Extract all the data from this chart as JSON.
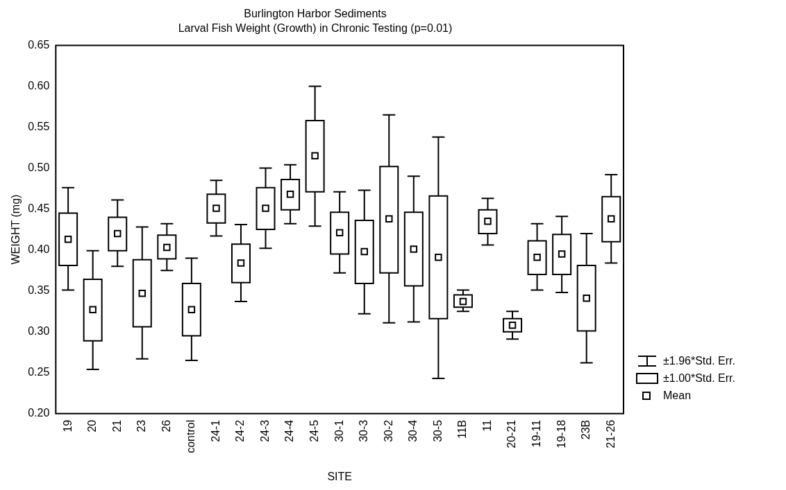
{
  "chart_data": {
    "type": "box",
    "title": "Burlington Harbor Sediments",
    "subtitle": "Larval Fish Weight (Growth) in Chronic Testing (p=0.01)",
    "xlabel": "SITE",
    "ylabel": "WEIGHT (mg)",
    "categories": [
      "19",
      "20",
      "21",
      "23",
      "26",
      "control",
      "24-1",
      "24-2",
      "24-3",
      "24-4",
      "24-5",
      "30-1",
      "30-3",
      "30-2",
      "30-4",
      "30-5",
      "11B",
      "11",
      "20-21",
      "19-11",
      "19-18",
      "23B",
      "21-26"
    ],
    "boxes": [
      {
        "low": 0.351,
        "q1": 0.381,
        "mean": 0.413,
        "q3": 0.445,
        "high": 0.476
      },
      {
        "low": 0.254,
        "q1": 0.289,
        "mean": 0.327,
        "q3": 0.364,
        "high": 0.399
      },
      {
        "low": 0.38,
        "q1": 0.399,
        "mean": 0.42,
        "q3": 0.44,
        "high": 0.461
      },
      {
        "low": 0.267,
        "q1": 0.306,
        "mean": 0.347,
        "q3": 0.388,
        "high": 0.428
      },
      {
        "low": 0.375,
        "q1": 0.389,
        "mean": 0.403,
        "q3": 0.418,
        "high": 0.432
      },
      {
        "low": 0.265,
        "q1": 0.295,
        "mean": 0.327,
        "q3": 0.359,
        "high": 0.39
      },
      {
        "low": 0.417,
        "q1": 0.433,
        "mean": 0.451,
        "q3": 0.468,
        "high": 0.485
      },
      {
        "low": 0.337,
        "q1": 0.36,
        "mean": 0.384,
        "q3": 0.407,
        "high": 0.431
      },
      {
        "low": 0.402,
        "q1": 0.425,
        "mean": 0.451,
        "q3": 0.476,
        "high": 0.5
      },
      {
        "low": 0.432,
        "q1": 0.449,
        "mean": 0.468,
        "q3": 0.486,
        "high": 0.504
      },
      {
        "low": 0.429,
        "q1": 0.471,
        "mean": 0.515,
        "q3": 0.558,
        "high": 0.6
      },
      {
        "low": 0.372,
        "q1": 0.395,
        "mean": 0.421,
        "q3": 0.446,
        "high": 0.471
      },
      {
        "low": 0.322,
        "q1": 0.359,
        "mean": 0.398,
        "q3": 0.436,
        "high": 0.473
      },
      {
        "low": 0.311,
        "q1": 0.372,
        "mean": 0.438,
        "q3": 0.502,
        "high": 0.565
      },
      {
        "low": 0.312,
        "q1": 0.356,
        "mean": 0.401,
        "q3": 0.446,
        "high": 0.49
      },
      {
        "low": 0.243,
        "q1": 0.316,
        "mean": 0.391,
        "q3": 0.466,
        "high": 0.538
      },
      {
        "low": 0.325,
        "q1": 0.33,
        "mean": 0.337,
        "q3": 0.345,
        "high": 0.351
      },
      {
        "low": 0.406,
        "q1": 0.42,
        "mean": 0.435,
        "q3": 0.449,
        "high": 0.463
      },
      {
        "low": 0.291,
        "q1": 0.3,
        "mean": 0.308,
        "q3": 0.316,
        "high": 0.325
      },
      {
        "low": 0.351,
        "q1": 0.37,
        "mean": 0.391,
        "q3": 0.411,
        "high": 0.432
      },
      {
        "low": 0.348,
        "q1": 0.37,
        "mean": 0.395,
        "q3": 0.419,
        "high": 0.441
      },
      {
        "low": 0.262,
        "q1": 0.301,
        "mean": 0.341,
        "q3": 0.381,
        "high": 0.42
      },
      {
        "low": 0.384,
        "q1": 0.41,
        "mean": 0.438,
        "q3": 0.465,
        "high": 0.492
      }
    ],
    "ylim": [
      0.2,
      0.65
    ],
    "yticks": [
      {
        "value": 0.2,
        "label": "0.20"
      },
      {
        "value": 0.25,
        "label": "0.25"
      },
      {
        "value": 0.3,
        "label": "0.30"
      },
      {
        "value": 0.35,
        "label": "0.35"
      },
      {
        "value": 0.4,
        "label": "0.40"
      },
      {
        "value": 0.45,
        "label": "0.45"
      },
      {
        "value": 0.5,
        "label": "0.50"
      },
      {
        "value": 0.55,
        "label": "0.55"
      },
      {
        "value": 0.6,
        "label": "0.60"
      },
      {
        "value": 0.65,
        "label": "0.65"
      }
    ],
    "annotations": [
      "±1.96*Std. Err.",
      "±1.00*Std. Err.",
      "Mean"
    ],
    "marker": "square",
    "grid": false
  }
}
